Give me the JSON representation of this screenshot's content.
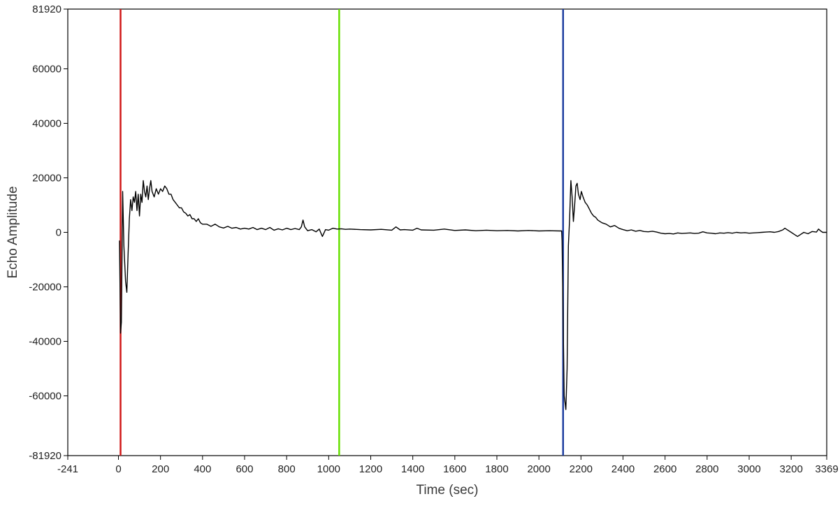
{
  "chart_data": {
    "type": "line",
    "title": "",
    "xlabel": "Time (sec)",
    "ylabel": "Echo Amplitude",
    "xlim": [
      -241,
      3369
    ],
    "ylim": [
      -81920,
      81920
    ],
    "x_ticks": [
      -241,
      0,
      200,
      400,
      600,
      800,
      1000,
      1200,
      1400,
      1600,
      1800,
      2000,
      2200,
      2400,
      2600,
      2800,
      3000,
      3200,
      3369
    ],
    "y_ticks": [
      81920,
      60000,
      40000,
      20000,
      0,
      -20000,
      -40000,
      -60000,
      -81920
    ],
    "grid": false,
    "legend": "none",
    "cursors": [
      {
        "name": "red cursor",
        "x": 10,
        "color": "#d01818"
      },
      {
        "name": "green cursor",
        "x": 1050,
        "color": "#66e000"
      },
      {
        "name": "blue cursor",
        "x": 2115,
        "color": "#1f3fa0"
      }
    ],
    "series": [
      {
        "color": "#000000",
        "points": [
          [
            5,
            -3000
          ],
          [
            10,
            -37000
          ],
          [
            14,
            -33000
          ],
          [
            20,
            15000
          ],
          [
            26,
            -5000
          ],
          [
            34,
            -18000
          ],
          [
            40,
            -22000
          ],
          [
            46,
            -8000
          ],
          [
            52,
            5000
          ],
          [
            58,
            12000
          ],
          [
            64,
            8000
          ],
          [
            70,
            13000
          ],
          [
            76,
            11000
          ],
          [
            82,
            15000
          ],
          [
            88,
            8000
          ],
          [
            94,
            14000
          ],
          [
            100,
            6000
          ],
          [
            106,
            14000
          ],
          [
            112,
            11000
          ],
          [
            118,
            19000
          ],
          [
            124,
            15000
          ],
          [
            130,
            13000
          ],
          [
            136,
            17000
          ],
          [
            142,
            12000
          ],
          [
            148,
            16000
          ],
          [
            154,
            19000
          ],
          [
            160,
            15000
          ],
          [
            170,
            13000
          ],
          [
            180,
            16000
          ],
          [
            190,
            14000
          ],
          [
            200,
            16000
          ],
          [
            210,
            15000
          ],
          [
            220,
            17000
          ],
          [
            230,
            16000
          ],
          [
            240,
            14000
          ],
          [
            250,
            14000
          ],
          [
            260,
            12000
          ],
          [
            270,
            11000
          ],
          [
            280,
            10000
          ],
          [
            290,
            9000
          ],
          [
            300,
            9000
          ],
          [
            310,
            7500
          ],
          [
            320,
            7000
          ],
          [
            330,
            6000
          ],
          [
            340,
            6500
          ],
          [
            350,
            5000
          ],
          [
            360,
            5000
          ],
          [
            370,
            4000
          ],
          [
            380,
            5000
          ],
          [
            390,
            3500
          ],
          [
            400,
            3000
          ],
          [
            420,
            3000
          ],
          [
            440,
            2200
          ],
          [
            460,
            3000
          ],
          [
            480,
            2000
          ],
          [
            500,
            1600
          ],
          [
            520,
            2200
          ],
          [
            540,
            1500
          ],
          [
            560,
            1800
          ],
          [
            580,
            1200
          ],
          [
            600,
            1500
          ],
          [
            620,
            1200
          ],
          [
            640,
            1800
          ],
          [
            660,
            1000
          ],
          [
            680,
            1500
          ],
          [
            700,
            1000
          ],
          [
            720,
            1800
          ],
          [
            740,
            800
          ],
          [
            760,
            1300
          ],
          [
            780,
            900
          ],
          [
            800,
            1500
          ],
          [
            820,
            1000
          ],
          [
            840,
            1400
          ],
          [
            860,
            1000
          ],
          [
            870,
            2000
          ],
          [
            878,
            4500
          ],
          [
            886,
            2000
          ],
          [
            900,
            600
          ],
          [
            920,
            1000
          ],
          [
            940,
            200
          ],
          [
            955,
            1200
          ],
          [
            970,
            -1500
          ],
          [
            985,
            1000
          ],
          [
            1000,
            800
          ],
          [
            1020,
            1500
          ],
          [
            1040,
            1200
          ],
          [
            1060,
            1300
          ],
          [
            1080,
            1100
          ],
          [
            1100,
            1200
          ],
          [
            1150,
            1000
          ],
          [
            1200,
            900
          ],
          [
            1250,
            1100
          ],
          [
            1300,
            800
          ],
          [
            1320,
            2000
          ],
          [
            1340,
            900
          ],
          [
            1360,
            1000
          ],
          [
            1400,
            800
          ],
          [
            1420,
            1500
          ],
          [
            1440,
            900
          ],
          [
            1500,
            800
          ],
          [
            1550,
            1200
          ],
          [
            1600,
            700
          ],
          [
            1650,
            900
          ],
          [
            1700,
            600
          ],
          [
            1750,
            800
          ],
          [
            1800,
            600
          ],
          [
            1850,
            700
          ],
          [
            1900,
            500
          ],
          [
            1950,
            700
          ],
          [
            2000,
            500
          ],
          [
            2050,
            600
          ],
          [
            2100,
            500
          ],
          [
            2108,
            500
          ],
          [
            2110,
            -3000
          ],
          [
            2120,
            -60000
          ],
          [
            2128,
            -65000
          ],
          [
            2134,
            -50000
          ],
          [
            2140,
            -5000
          ],
          [
            2146,
            5000
          ],
          [
            2152,
            19000
          ],
          [
            2158,
            13000
          ],
          [
            2164,
            4000
          ],
          [
            2170,
            10000
          ],
          [
            2176,
            17000
          ],
          [
            2182,
            18000
          ],
          [
            2188,
            14000
          ],
          [
            2196,
            12000
          ],
          [
            2202,
            15000
          ],
          [
            2210,
            13000
          ],
          [
            2220,
            11000
          ],
          [
            2230,
            10000
          ],
          [
            2240,
            8500
          ],
          [
            2250,
            7000
          ],
          [
            2260,
            6000
          ],
          [
            2270,
            5500
          ],
          [
            2280,
            4500
          ],
          [
            2300,
            3500
          ],
          [
            2320,
            3000
          ],
          [
            2340,
            2000
          ],
          [
            2360,
            2500
          ],
          [
            2380,
            1500
          ],
          [
            2400,
            1000
          ],
          [
            2420,
            600
          ],
          [
            2440,
            900
          ],
          [
            2460,
            400
          ],
          [
            2480,
            700
          ],
          [
            2500,
            300
          ],
          [
            2520,
            200
          ],
          [
            2540,
            400
          ],
          [
            2560,
            100
          ],
          [
            2580,
            -300
          ],
          [
            2600,
            -500
          ],
          [
            2620,
            -400
          ],
          [
            2640,
            -600
          ],
          [
            2660,
            -200
          ],
          [
            2680,
            -400
          ],
          [
            2700,
            -300
          ],
          [
            2720,
            -200
          ],
          [
            2740,
            -400
          ],
          [
            2760,
            -300
          ],
          [
            2780,
            200
          ],
          [
            2800,
            -200
          ],
          [
            2820,
            -300
          ],
          [
            2840,
            -500
          ],
          [
            2860,
            -200
          ],
          [
            2880,
            -300
          ],
          [
            2900,
            -100
          ],
          [
            2920,
            -300
          ],
          [
            2940,
            0
          ],
          [
            2960,
            -200
          ],
          [
            2980,
            -100
          ],
          [
            3000,
            -300
          ],
          [
            3020,
            -200
          ],
          [
            3040,
            -100
          ],
          [
            3060,
            0
          ],
          [
            3080,
            100
          ],
          [
            3100,
            200
          ],
          [
            3120,
            0
          ],
          [
            3140,
            300
          ],
          [
            3160,
            900
          ],
          [
            3170,
            1500
          ],
          [
            3180,
            1000
          ],
          [
            3200,
            0
          ],
          [
            3220,
            -1000
          ],
          [
            3230,
            -1500
          ],
          [
            3240,
            -1000
          ],
          [
            3260,
            0
          ],
          [
            3280,
            -500
          ],
          [
            3300,
            300
          ],
          [
            3320,
            100
          ],
          [
            3330,
            1200
          ],
          [
            3340,
            500
          ],
          [
            3350,
            0
          ],
          [
            3369,
            0
          ]
        ]
      }
    ]
  }
}
